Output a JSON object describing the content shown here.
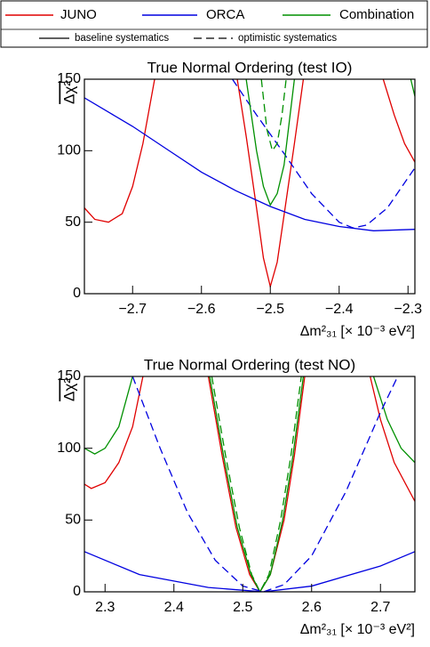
{
  "legend": {
    "entries": [
      {
        "name": "JUNO",
        "color": "#e00000"
      },
      {
        "name": "ORCA",
        "color": "#0000e0"
      },
      {
        "name": "Combination",
        "color": "#009000"
      }
    ],
    "styles": [
      {
        "name": "baseline systematics",
        "dash": "solid"
      },
      {
        "name": "optimistic systematics",
        "dash": "dashed"
      }
    ]
  },
  "chart_data": [
    {
      "type": "line",
      "title": "True Normal Ordering (test IO)",
      "xlabel": "Δm²₃₁ [× 10⁻³ eV²]",
      "ylabel": "Δχ²",
      "xlim": [
        -2.77,
        -2.29
      ],
      "ylim": [
        0,
        150
      ],
      "xticks": [
        {
          "value": -2.7,
          "label": "−2.7"
        },
        {
          "value": -2.6,
          "label": "−2.6"
        },
        {
          "value": -2.5,
          "label": "−2.5"
        },
        {
          "value": -2.4,
          "label": "−2.4"
        },
        {
          "value": -2.3,
          "label": "−2.3"
        }
      ],
      "yticks": [
        0,
        50,
        100,
        150
      ],
      "series": [
        {
          "color": "#e00000",
          "dash": "solid",
          "x": [
            -2.77,
            -2.755,
            -2.735,
            -2.715,
            -2.7,
            -2.685,
            -2.668,
            null,
            -2.548,
            -2.535,
            -2.52,
            -2.51,
            -2.5,
            -2.49,
            -2.48,
            -2.465,
            -2.452,
            null,
            -2.336,
            -2.32,
            -2.305,
            -2.29
          ],
          "values": [
            60,
            52,
            50,
            56,
            75,
            105,
            150,
            null,
            150,
            110,
            60,
            25,
            5,
            22,
            55,
            105,
            150,
            null,
            150,
            125,
            105,
            92
          ]
        },
        {
          "color": "#0000e0",
          "dash": "solid",
          "x": [
            -2.77,
            -2.7,
            -2.65,
            -2.6,
            -2.55,
            -2.5,
            -2.45,
            -2.4,
            -2.35,
            -2.29
          ],
          "values": [
            137,
            117,
            101,
            85,
            72,
            61,
            52,
            47,
            44,
            45
          ]
        },
        {
          "color": "#0000e0",
          "dash": "dashed",
          "x": [
            -2.555,
            -2.52,
            -2.48,
            -2.44,
            -2.4,
            -2.38,
            -2.36,
            -2.33,
            -2.29
          ],
          "values": [
            150,
            125,
            98,
            70,
            50,
            46,
            48,
            60,
            88
          ]
        },
        {
          "color": "#009000",
          "dash": "solid",
          "x": [
            -2.535,
            -2.52,
            -2.51,
            -2.5,
            -2.49,
            -2.48,
            -2.465,
            null,
            -2.296,
            -2.29
          ],
          "values": [
            150,
            100,
            75,
            62,
            70,
            90,
            150,
            null,
            150,
            138
          ]
        },
        {
          "color": "#009000",
          "dash": "dashed",
          "x": [
            -2.513,
            -2.505,
            -2.497,
            -2.49,
            -2.483,
            -2.477
          ],
          "values": [
            150,
            115,
            100,
            105,
            125,
            150
          ]
        }
      ]
    },
    {
      "type": "line",
      "title": "True Normal Ordering (test NO)",
      "xlabel": "Δm²₃₁ [× 10⁻³ eV²]",
      "ylabel": "Δχ²",
      "xlim": [
        2.27,
        2.75
      ],
      "ylim": [
        0,
        150
      ],
      "xticks": [
        2.3,
        2.4,
        2.5,
        2.6,
        2.7
      ],
      "yticks": [
        0,
        50,
        100,
        150
      ],
      "series": [
        {
          "color": "#e00000",
          "dash": "solid",
          "x": [
            2.27,
            2.28,
            2.3,
            2.32,
            2.34,
            2.355,
            null,
            2.45,
            2.47,
            2.49,
            2.51,
            2.525,
            2.54,
            2.56,
            2.575,
            2.59,
            null,
            2.685,
            2.7,
            2.72,
            2.75
          ],
          "values": [
            75,
            72,
            76,
            90,
            115,
            150,
            null,
            150,
            95,
            45,
            12,
            0,
            12,
            50,
            95,
            150,
            null,
            150,
            120,
            90,
            63
          ]
        },
        {
          "color": "#009000",
          "dash": "solid",
          "x": [
            2.27,
            2.285,
            2.3,
            2.32,
            2.34,
            null,
            2.452,
            2.472,
            2.492,
            2.512,
            2.525,
            2.54,
            2.558,
            2.573,
            2.588,
            null,
            2.69,
            2.71,
            2.73,
            2.75
          ],
          "values": [
            100,
            96,
            100,
            115,
            150,
            null,
            150,
            95,
            45,
            12,
            0,
            12,
            50,
            95,
            150,
            null,
            150,
            120,
            100,
            90
          ]
        },
        {
          "color": "#009000",
          "dash": "dashed",
          "x": [
            2.455,
            2.475,
            2.495,
            2.513,
            2.525,
            2.538,
            2.555,
            2.57,
            2.585
          ],
          "values": [
            150,
            95,
            45,
            12,
            0,
            12,
            50,
            95,
            150
          ]
        },
        {
          "color": "#0000e0",
          "dash": "solid",
          "x": [
            2.27,
            2.35,
            2.45,
            2.53,
            2.6,
            2.7,
            2.75
          ],
          "values": [
            28,
            12,
            3,
            0,
            4,
            18,
            28
          ]
        },
        {
          "color": "#0000e0",
          "dash": "dashed",
          "x": [
            2.34,
            2.38,
            2.42,
            2.46,
            2.5,
            2.53,
            2.56,
            2.6,
            2.65,
            2.7,
            2.725
          ],
          "values": [
            150,
            100,
            55,
            22,
            4,
            0,
            5,
            25,
            70,
            125,
            150
          ]
        }
      ]
    }
  ]
}
